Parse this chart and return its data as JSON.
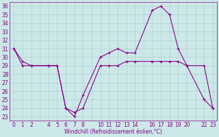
{
  "xlabel": "Windchill (Refroidissement éolien,°C)",
  "hours": [
    0,
    1,
    2,
    4,
    5,
    6,
    7,
    8,
    10,
    11,
    12,
    13,
    14,
    16,
    17,
    18,
    19,
    20,
    22,
    23
  ],
  "temp": [
    31,
    29.5,
    29,
    29,
    29,
    24,
    23,
    25.5,
    30,
    30.5,
    31,
    30.5,
    30.5,
    35.5,
    36,
    35,
    31,
    29,
    25,
    24
  ],
  "windchill": [
    31,
    29,
    29,
    29,
    29,
    24,
    23.5,
    24,
    29,
    29,
    29,
    29.5,
    29.5,
    29.5,
    29.5,
    29.5,
    29.5,
    29,
    29,
    24
  ],
  "bg_color": "#cce8e8",
  "line_color": "#880088",
  "ylim_min": 23,
  "ylim_max": 36,
  "yticks": [
    23,
    24,
    25,
    26,
    27,
    28,
    29,
    30,
    31,
    32,
    33,
    34,
    35,
    36
  ],
  "xticks": [
    0,
    1,
    2,
    4,
    5,
    6,
    7,
    8,
    10,
    11,
    12,
    13,
    14,
    16,
    17,
    18,
    19,
    20,
    22,
    23
  ],
  "xtick_labels": [
    "0",
    "1",
    "2",
    "4",
    "5",
    "6",
    "7",
    "8",
    "10",
    "11",
    "12",
    "13",
    "14",
    "16",
    "17",
    "18",
    "19",
    "20",
    "22",
    "23"
  ],
  "grid_color": "#aacccc",
  "xlabel_fontsize": 5.5,
  "tick_fontsize": 5.5
}
